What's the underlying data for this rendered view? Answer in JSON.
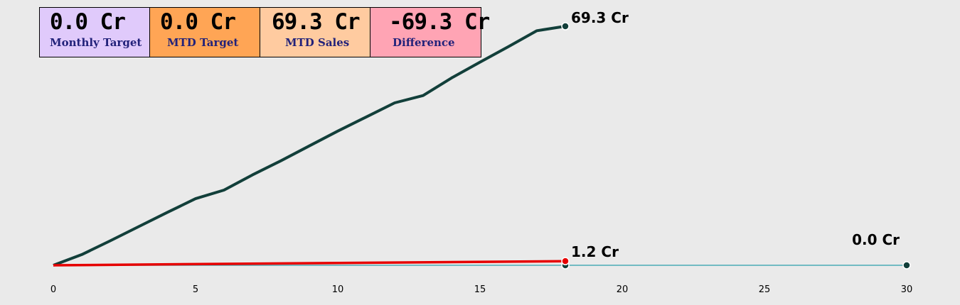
{
  "kpis": [
    {
      "value": "0.0 Cr",
      "label": "Monthly Target",
      "color": "#e0cafb"
    },
    {
      "value": "0.0 Cr",
      "label": "MTD Target",
      "color": "#ffa555"
    },
    {
      "value": "69.3 Cr",
      "label": "MTD Sales",
      "color": "#ffcba0"
    },
    {
      "value": "-69.3 Cr",
      "label": "Difference",
      "color": "#ffa4b4"
    }
  ],
  "chart_data": {
    "type": "line",
    "xlim": [
      0,
      30
    ],
    "xticks": [
      0,
      5,
      10,
      15,
      20,
      25,
      30
    ],
    "grid": false,
    "series": [
      {
        "color": "#123f3a",
        "x": [
          0,
          1,
          2,
          3,
          4,
          5,
          6,
          7,
          8,
          9,
          10,
          11,
          12,
          13,
          14,
          15,
          16,
          17,
          18
        ],
        "values": [
          0.0,
          3.1,
          7.1,
          11.2,
          15.3,
          19.3,
          21.8,
          26.2,
          30.3,
          34.6,
          38.9,
          43.0,
          47.1,
          49.2,
          54.3,
          58.9,
          63.4,
          68.0,
          69.3
        ],
        "end_label": "69.3 Cr",
        "width": 4
      },
      {
        "color": "#e60000",
        "x": [
          0,
          18
        ],
        "values": [
          0.0,
          1.2
        ],
        "end_label": "1.2 Cr",
        "width": 3.5
      },
      {
        "color": "#4aabb5",
        "x": [
          0,
          18,
          30
        ],
        "values": [
          0.0,
          0.0,
          0.0
        ],
        "end_label": "0.0 Cr",
        "width": 1.6
      }
    ]
  }
}
